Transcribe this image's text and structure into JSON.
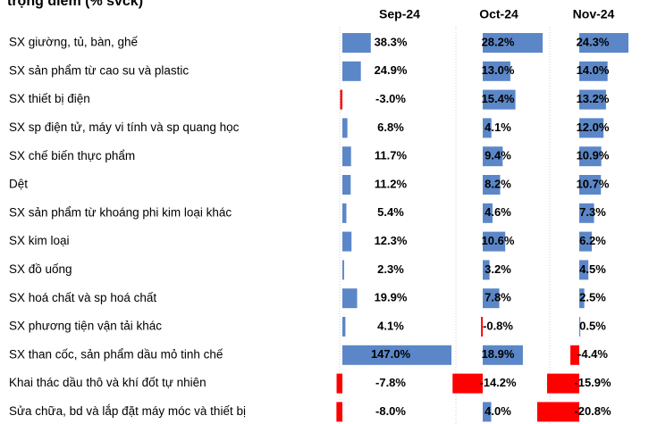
{
  "chart_data": {
    "type": "bar",
    "title": "trọng điểm (% svck)",
    "categories": [
      "SX giường, tủ, bàn, ghế",
      "SX sản phẩm từ cao su và plastic",
      "SX thiết bị điện",
      "SX sp điện tử, máy vi tính và sp quang học",
      "SX chế biến thực phẩm",
      "Dệt",
      "SX sản phẩm từ khoáng phi kim loại khác",
      "SX kim loại",
      "SX đồ uống",
      "SX hoá chất và sp hoá chất",
      "SX phương tiện vận tải khác",
      "SX than cốc, sản phẩm dầu mỏ tinh chế",
      "Khai thác dầu thô và khí đốt tự nhiên",
      "Sửa chữa, bd và lắp đặt máy móc và thiết bị"
    ],
    "color": "#5b87c8",
    "negative_color": "#ff0000",
    "series": [
      {
        "name": "Sep-24",
        "values": [
          38.3,
          24.9,
          -3.0,
          6.8,
          11.7,
          11.2,
          5.4,
          12.3,
          2.3,
          19.9,
          4.1,
          147.0,
          -7.8,
          -8.0
        ],
        "value_labels": [
          "38.3%",
          "24.9%",
          "-3.0%",
          "6.8%",
          "11.7%",
          "11.2%",
          "5.4%",
          "12.3%",
          "2.3%",
          "19.9%",
          "4.1%",
          "147.0%",
          "-7.8%",
          "-8.0%"
        ]
      },
      {
        "name": "Oct-24",
        "values": [
          28.2,
          13.0,
          15.4,
          4.1,
          9.4,
          8.2,
          4.6,
          10.6,
          3.2,
          7.8,
          -0.8,
          18.9,
          -14.2,
          4.0
        ],
        "value_labels": [
          "28.2%",
          "13.0%",
          "15.4%",
          "4.1%",
          "9.4%",
          "8.2%",
          "4.6%",
          "10.6%",
          "3.2%",
          "7.8%",
          "-0.8%",
          "18.9%",
          "-14.2%",
          "4.0%"
        ]
      },
      {
        "name": "Nov-24",
        "values": [
          24.3,
          14.0,
          13.2,
          12.0,
          10.9,
          10.7,
          7.3,
          6.2,
          4.5,
          2.5,
          0.5,
          -4.4,
          -15.9,
          -20.8
        ],
        "value_labels": [
          "24.3%",
          "14.0%",
          "13.2%",
          "12.0%",
          "10.9%",
          "10.7%",
          "7.3%",
          "6.2%",
          "4.5%",
          "2.5%",
          "0.5%",
          "-4.4%",
          "-15.9%",
          "-20.8%"
        ]
      }
    ]
  }
}
